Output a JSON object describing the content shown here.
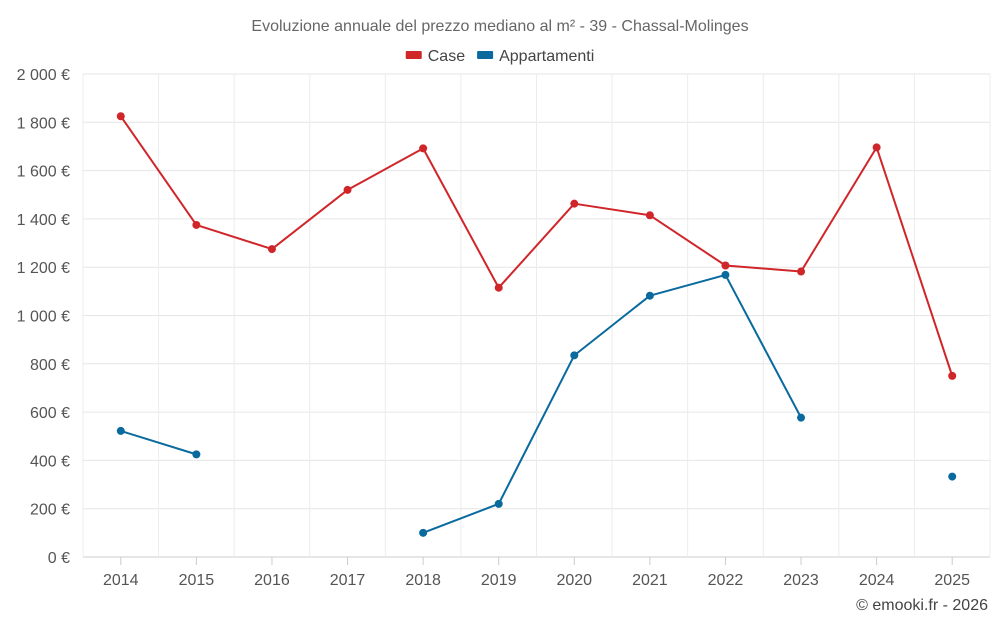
{
  "chart_data": {
    "type": "line",
    "title": "Evoluzione annuale del prezzo mediano al m² - 39 - Chassal-Molinges",
    "categories": [
      "2014",
      "2015",
      "2016",
      "2017",
      "2018",
      "2019",
      "2020",
      "2021",
      "2022",
      "2023",
      "2024",
      "2025"
    ],
    "series": [
      {
        "name": "Case",
        "color": "#d0262a",
        "values": [
          1825,
          1375,
          1275,
          1520,
          1692,
          1115,
          1463,
          1415,
          1207,
          1182,
          1696,
          750
        ]
      },
      {
        "name": "Appartamenti",
        "color": "#0a6a9e",
        "values": [
          522,
          425,
          null,
          null,
          100,
          220,
          835,
          1082,
          1168,
          577,
          null,
          333
        ]
      }
    ],
    "y_ticks": [
      0,
      200,
      400,
      600,
      800,
      1000,
      1200,
      1400,
      1600,
      1800,
      2000
    ],
    "y_tick_labels": [
      "0 €",
      "200 €",
      "400 €",
      "600 €",
      "800 €",
      "1 000 €",
      "1 200 €",
      "1 400 €",
      "1 600 €",
      "1 800 €",
      "2 000 €"
    ],
    "ylim": [
      0,
      2000
    ],
    "xlabel": "",
    "ylabel": "",
    "grid": true,
    "legend_position": "top-center"
  },
  "credit": "© emooki.fr - 2026"
}
